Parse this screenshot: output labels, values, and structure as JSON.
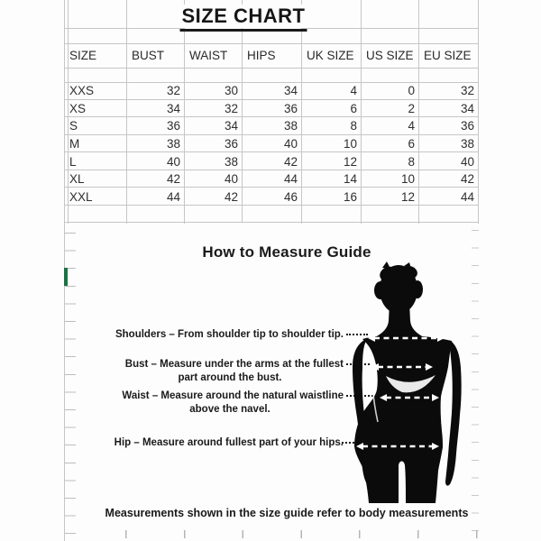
{
  "title": "SIZE CHART",
  "table": {
    "headers": [
      "SIZE",
      "BUST",
      "WAIST",
      "HIPS",
      "UK SIZE",
      "US SIZE",
      "EU SIZE"
    ],
    "rows": [
      [
        "XXS",
        "32",
        "30",
        "34",
        "4",
        "0",
        "32"
      ],
      [
        "XS",
        "34",
        "32",
        "36",
        "6",
        "2",
        "34"
      ],
      [
        "S",
        "36",
        "34",
        "38",
        "8",
        "4",
        "36"
      ],
      [
        "M",
        "38",
        "36",
        "40",
        "10",
        "6",
        "38"
      ],
      [
        "L",
        "40",
        "38",
        "42",
        "12",
        "8",
        "40"
      ],
      [
        "XL",
        "42",
        "40",
        "44",
        "14",
        "10",
        "42"
      ],
      [
        "XXL",
        "44",
        "42",
        "46",
        "16",
        "12",
        "44"
      ]
    ]
  },
  "guide": {
    "heading": "How to Measure Guide",
    "shoulders_label": "Shoulders – From shoulder tip to shoulder tip.",
    "bust_label_line1": "Bust – Measure under the arms at the fullest",
    "bust_label_line2": "part around the bust.",
    "waist_label_line1": "Waist – Measure around the natural waistline",
    "waist_label_line2": "above the navel.",
    "hip_label": "Hip – Measure around fullest part of your hips.",
    "footer": "Measurements shown in the size guide refer to body measurements",
    "figure_icon": "female-body-silhouette",
    "measure_lines": [
      "shoulders",
      "bust",
      "waist",
      "hips"
    ]
  },
  "colors": {
    "background": "#fdfdfd",
    "text": "#1a1a1a",
    "gridline": "#c6c6c6",
    "selection_green": "#1e7145",
    "silhouette": "#0b0b0b"
  }
}
